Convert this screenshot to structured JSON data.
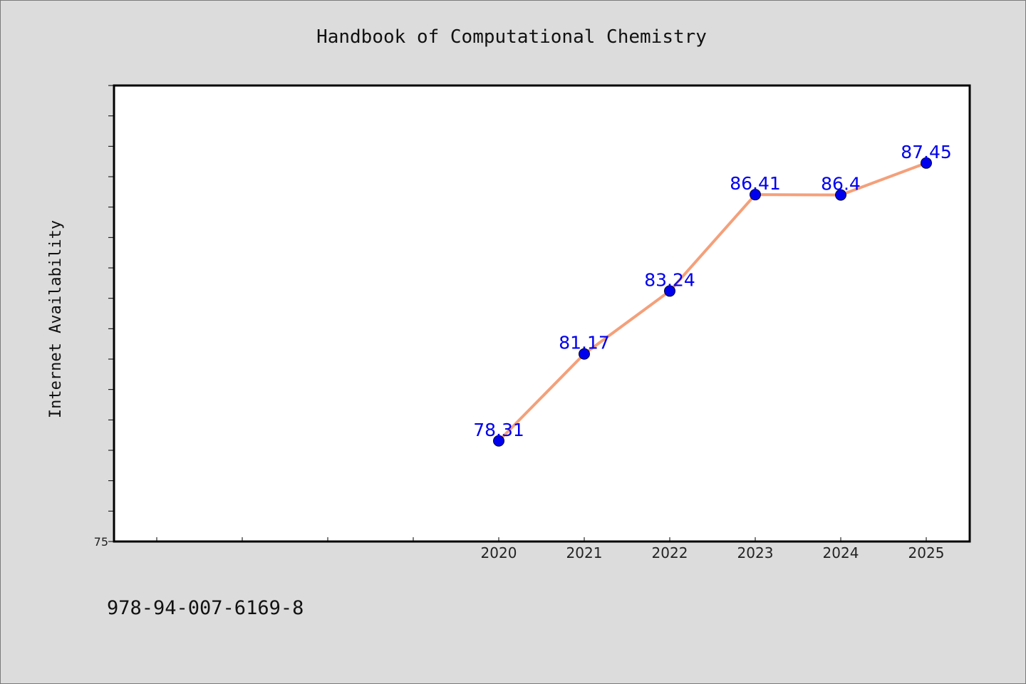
{
  "chart_data": {
    "type": "line",
    "title": "Handbook of Computational Chemistry",
    "ylabel": "Internet Availability",
    "xlabel": "",
    "x": [
      "2020",
      "2021",
      "2022",
      "2023",
      "2024",
      "2025"
    ],
    "values": [
      78.31,
      81.17,
      83.24,
      86.41,
      86.4,
      87.45
    ],
    "data_labels": [
      "78.31",
      "81.17",
      "83.24",
      "86.41",
      "86.4",
      "87.45"
    ],
    "y_tick_labels": [
      "75"
    ],
    "ylim": [
      75,
      90
    ],
    "x_axis_start_year": 2016,
    "grid": false,
    "legend": "none",
    "colors": {
      "line": "#f4a07a",
      "marker": "#0000ee",
      "data_label": "#0000ee",
      "background": "#dcdcdc",
      "plot_background": "#ffffff"
    }
  },
  "footer": {
    "isbn": "978-94-007-6169-8"
  }
}
